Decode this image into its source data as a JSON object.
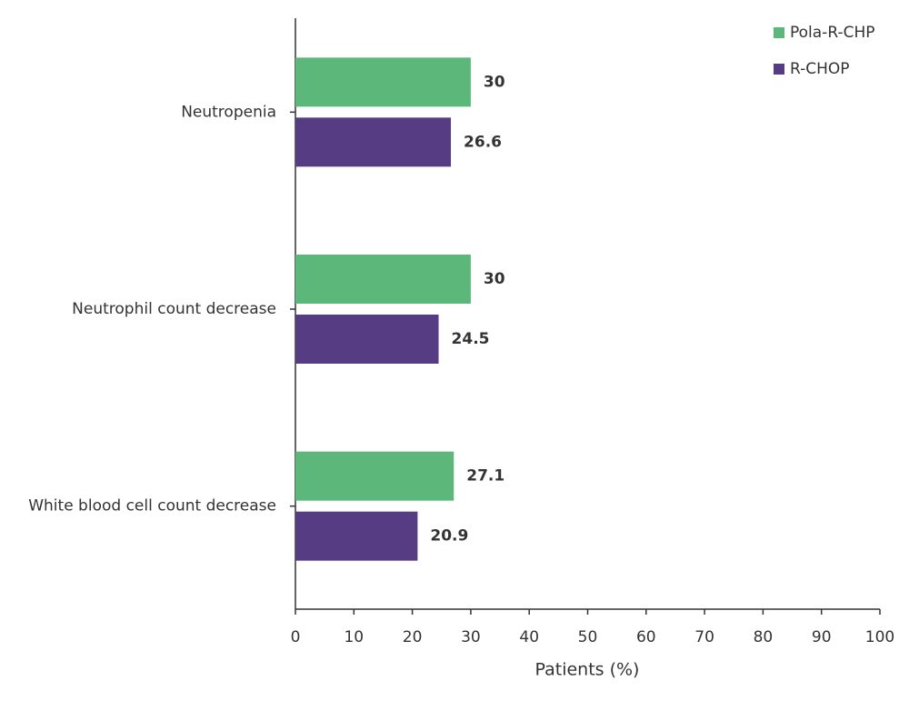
{
  "chart_data": {
    "type": "bar",
    "orientation": "horizontal",
    "xlabel": "Patients (%)",
    "categories": [
      "Neutropenia",
      "Neutrophil count decrease",
      "White blood cell count decrease"
    ],
    "series": [
      {
        "name": "Pola-R-CHP",
        "color": "#5cb87a",
        "values": [
          30,
          30,
          27.1
        ]
      },
      {
        "name": "R-CHOP",
        "color": "#553c83",
        "values": [
          26.6,
          24.5,
          20.9
        ]
      }
    ],
    "xlim": [
      0,
      100
    ],
    "xticks": [
      0,
      10,
      20,
      30,
      40,
      50,
      60,
      70,
      80,
      90,
      100
    ],
    "legend": "upper right"
  }
}
